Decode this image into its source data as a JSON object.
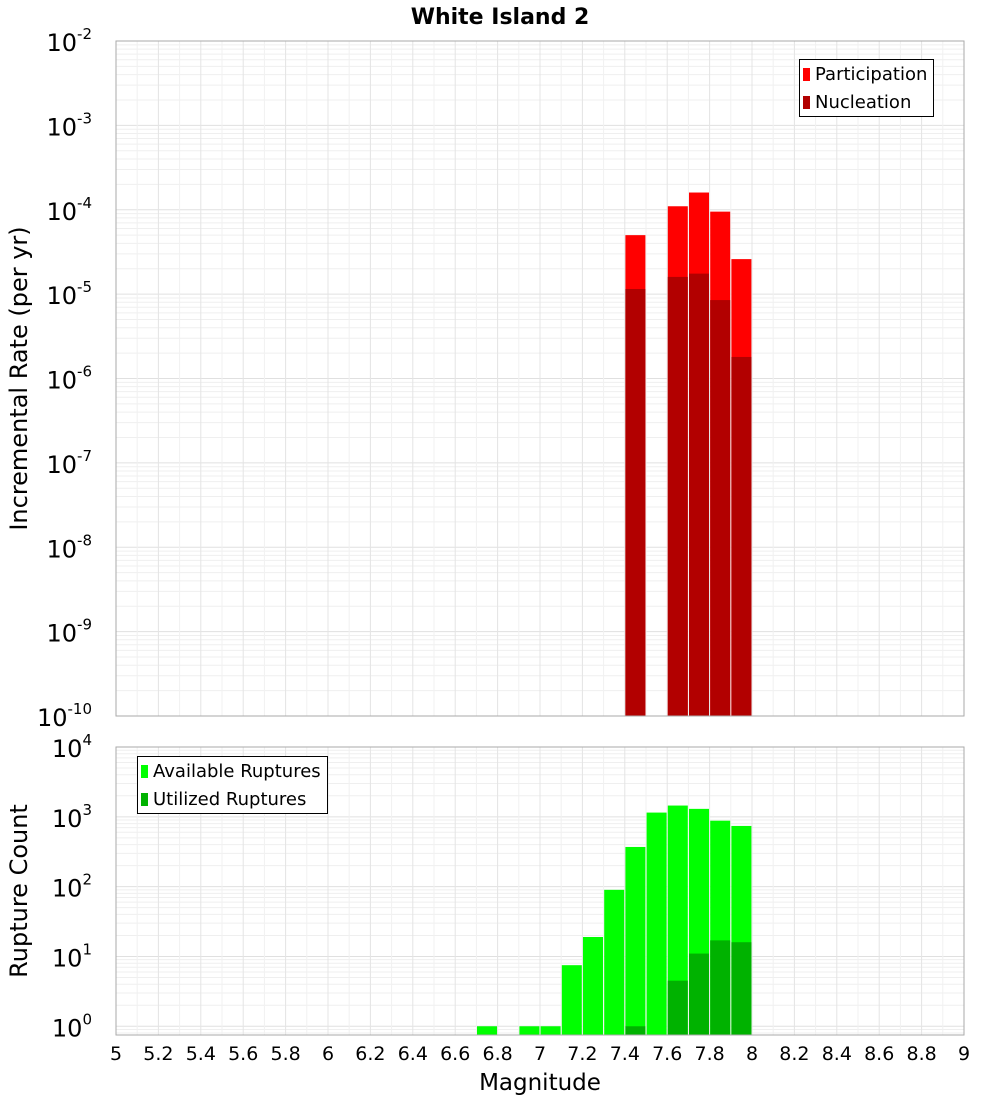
{
  "chart_data": [
    {
      "type": "bar",
      "title": "White Island 2",
      "ylabel": "Incremental Rate (per yr)",
      "xlabel": "",
      "yscale": "log",
      "ylim": [
        1e-10,
        0.01
      ],
      "xlim": [
        5,
        9
      ],
      "grid": true,
      "legend_position": "top-right",
      "y_ticks": [
        {
          "base": "10",
          "exp": "-10",
          "value": 1e-10
        },
        {
          "base": "10",
          "exp": "-9",
          "value": 1e-09
        },
        {
          "base": "10",
          "exp": "-8",
          "value": 1e-08
        },
        {
          "base": "10",
          "exp": "-7",
          "value": 1e-07
        },
        {
          "base": "10",
          "exp": "-6",
          "value": 1e-06
        },
        {
          "base": "10",
          "exp": "-5",
          "value": 1e-05
        },
        {
          "base": "10",
          "exp": "-4",
          "value": 0.0001
        },
        {
          "base": "10",
          "exp": "-3",
          "value": 0.001
        },
        {
          "base": "10",
          "exp": "-2",
          "value": 0.01
        }
      ],
      "series": [
        {
          "name": "Participation",
          "color": "#ff0000",
          "x": [
            7.45,
            7.65,
            7.75,
            7.85,
            7.95
          ],
          "values": [
            5e-05,
            0.00011,
            0.00016,
            9.5e-05,
            2.6e-05
          ]
        },
        {
          "name": "Nucleation",
          "color": "#b20000",
          "x": [
            7.45,
            7.65,
            7.75,
            7.85,
            7.95
          ],
          "values": [
            1.15e-05,
            1.6e-05,
            1.75e-05,
            8.5e-06,
            1.8e-06
          ]
        }
      ]
    },
    {
      "type": "bar",
      "title": "",
      "ylabel": "Rupture Count",
      "xlabel": "Magnitude",
      "yscale": "log",
      "ylim": [
        0.75,
        10000.0
      ],
      "xlim": [
        5,
        9
      ],
      "grid": true,
      "legend_position": "top-left",
      "y_ticks": [
        {
          "base": "10",
          "exp": "0",
          "value": 1
        },
        {
          "base": "10",
          "exp": "1",
          "value": 10
        },
        {
          "base": "10",
          "exp": "2",
          "value": 100
        },
        {
          "base": "10",
          "exp": "3",
          "value": 1000
        },
        {
          "base": "10",
          "exp": "4",
          "value": 10000
        }
      ],
      "x_ticks": [
        "5",
        "5.2",
        "5.4",
        "5.6",
        "5.8",
        "6",
        "6.2",
        "6.4",
        "6.6",
        "6.8",
        "7",
        "7.2",
        "7.4",
        "7.6",
        "7.8",
        "8",
        "8.2",
        "8.4",
        "8.6",
        "8.8",
        "9"
      ],
      "series": [
        {
          "name": "Available Ruptures",
          "color": "#00ff00",
          "x": [
            6.75,
            6.95,
            7.05,
            7.15,
            7.25,
            7.35,
            7.45,
            7.55,
            7.65,
            7.75,
            7.85,
            7.95
          ],
          "values": [
            1,
            1,
            1,
            7.5,
            19,
            90,
            370,
            1150,
            1450,
            1300,
            880,
            740
          ]
        },
        {
          "name": "Utilized Ruptures",
          "color": "#00b200",
          "x": [
            7.45,
            7.65,
            7.75,
            7.85,
            7.95
          ],
          "values": [
            1,
            4.5,
            11,
            17,
            16
          ]
        }
      ]
    }
  ]
}
